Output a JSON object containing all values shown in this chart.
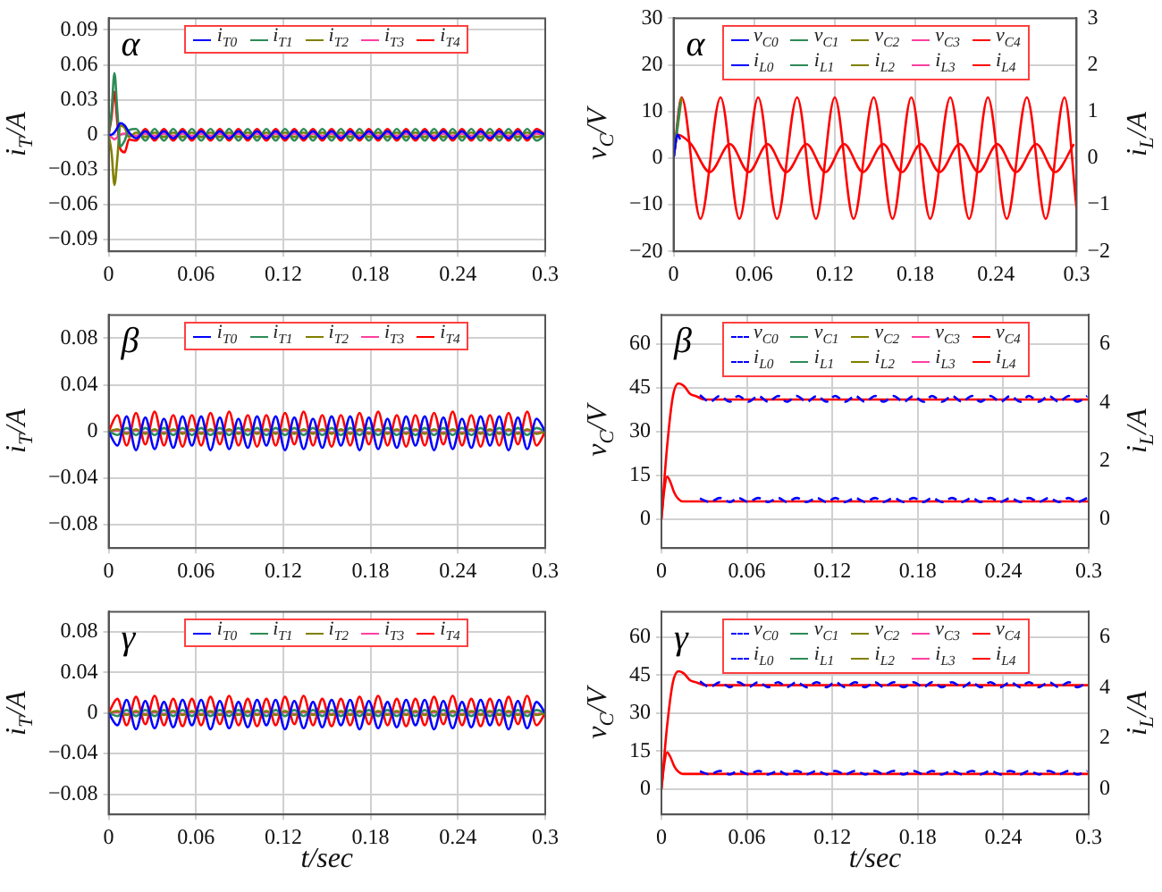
{
  "chart_data": [
    {
      "type": "line",
      "title": "α",
      "ylabel": "i$_{T}$/A",
      "x": [
        0,
        0.002,
        0.004,
        0.006,
        0.008,
        0.011,
        0.014,
        0.0188,
        0.0252,
        0.0316,
        0.038,
        0.0444,
        0.0508,
        0.0572,
        0.0636,
        0.07,
        0.0764,
        0.0828,
        0.0892,
        0.0956,
        0.102,
        0.1084,
        0.1148,
        0.1212,
        0.1276,
        0.134,
        0.1404,
        0.1468,
        0.1532,
        0.1596,
        0.166,
        0.1724,
        0.1788,
        0.1852,
        0.1916,
        0.198,
        0.2044,
        0.2108,
        0.2172,
        0.2236,
        0.23,
        0.2364,
        0.2428,
        0.2492,
        0.2556,
        0.262,
        0.2684,
        0.2748,
        0.2812,
        0.2876,
        0.294,
        0.3
      ],
      "series": [
        {
          "name": "i$_{T0}$",
          "color": "#0000ff",
          "values": [
            0,
            0,
            0.002,
            0.006,
            0.01,
            0.008,
            0.002,
            -0.003,
            0.003,
            -0.003,
            0.003,
            -0.003,
            0.003,
            -0.003,
            0.003,
            -0.003,
            0.003,
            -0.003,
            0.003,
            -0.003,
            0.003,
            -0.003,
            0.003,
            -0.003,
            0.003,
            -0.003,
            0.003,
            -0.003,
            0.003,
            -0.003,
            0.003,
            -0.003,
            0.003,
            -0.003,
            0.003,
            -0.003,
            0.003,
            -0.003,
            0.003,
            -0.003,
            0.003,
            -0.003,
            0.003,
            -0.003,
            0.003,
            -0.003,
            0.003,
            -0.003,
            0.003,
            -0.003,
            0.003,
            0
          ]
        },
        {
          "name": "i$_{T1}$",
          "color": "#2e8b57",
          "values": [
            0,
            0.02,
            0.053,
            0.02,
            -0.01,
            -0.005,
            0.004,
            0.005,
            -0.005,
            0.005,
            -0.005,
            0.005,
            -0.005,
            0.005,
            -0.005,
            0.005,
            -0.005,
            0.005,
            -0.005,
            0.005,
            -0.005,
            0.005,
            -0.005,
            0.005,
            -0.005,
            0.005,
            -0.005,
            0.005,
            -0.005,
            0.005,
            -0.005,
            0.005,
            -0.005,
            0.005,
            -0.005,
            0.005,
            -0.005,
            0.005,
            -0.005,
            0.005,
            -0.005,
            0.005,
            -0.005,
            0.005,
            -0.005,
            0.005,
            -0.005,
            0.005,
            -0.005,
            0.005,
            -0.005,
            0
          ]
        },
        {
          "name": "i$_{T2}$",
          "color": "#808000",
          "values": [
            0,
            -0.015,
            -0.043,
            -0.02,
            0.008,
            0.006,
            -0.002,
            0.002,
            -0.002,
            0.002,
            -0.002,
            0.002,
            -0.002,
            0.002,
            -0.002,
            0.002,
            -0.002,
            0.002,
            -0.002,
            0.002,
            -0.002,
            0.002,
            -0.002,
            0.002,
            -0.002,
            0.002,
            -0.002,
            0.002,
            -0.002,
            0.002,
            -0.002,
            0.002,
            -0.002,
            0.002,
            -0.002,
            0.002,
            -0.002,
            0.002,
            -0.002,
            0.002,
            -0.002,
            0.002,
            -0.002,
            0.002,
            -0.002,
            0.002,
            -0.002,
            0.002,
            -0.002,
            0.002,
            -0.002,
            0
          ]
        },
        {
          "name": "i$_{T3}$",
          "color": "#ff3fa0",
          "values": [
            0,
            -0.002,
            -0.004,
            -0.002,
            0,
            0.001,
            0,
            -0.001,
            0.001,
            -0.001,
            0.001,
            -0.001,
            0.001,
            -0.001,
            0.001,
            -0.001,
            0.001,
            -0.001,
            0.001,
            -0.001,
            0.001,
            -0.001,
            0.001,
            -0.001,
            0.001,
            -0.001,
            0.001,
            -0.001,
            0.001,
            -0.001,
            0.001,
            -0.001,
            0.001,
            -0.001,
            0.001,
            -0.001,
            0.001,
            -0.001,
            0.001,
            -0.001,
            0.001,
            -0.001,
            0.001,
            -0.001,
            0.001,
            -0.001,
            0.001,
            -0.001,
            0.001,
            -0.001,
            0.001,
            0
          ]
        },
        {
          "name": "i$_{T4}$",
          "color": "#ff0000",
          "values": [
            0,
            0.015,
            0.037,
            0.01,
            -0.012,
            -0.015,
            -0.004,
            -0.005,
            0.005,
            -0.005,
            0.005,
            -0.005,
            0.005,
            -0.005,
            0.005,
            -0.005,
            0.005,
            -0.005,
            0.005,
            -0.005,
            0.005,
            -0.005,
            0.005,
            -0.005,
            0.005,
            -0.005,
            0.005,
            -0.005,
            0.005,
            -0.005,
            0.005,
            -0.005,
            0.005,
            -0.005,
            0.005,
            -0.005,
            0.005,
            -0.005,
            0.005,
            -0.005,
            0.005,
            -0.005,
            0.005,
            -0.005,
            0.005,
            -0.005,
            0.005,
            -0.005,
            0.005,
            -0.005,
            0.005,
            0
          ]
        }
      ],
      "xlim": [
        0,
        0.3
      ],
      "xticks": [
        0,
        0.06,
        0.12,
        0.18,
        0.24,
        0.3
      ],
      "ylim": [
        -0.1,
        0.1
      ],
      "yticks": [
        -0.09,
        -0.06,
        -0.03,
        0,
        0.03,
        0.06,
        0.09
      ],
      "grid": true,
      "legend": "top"
    },
    {
      "type": "line",
      "title": "α",
      "ylabel": "v$_{C}$/V",
      "y2label": "i$_{L}$/A",
      "series": [
        {
          "name": "v$_{C0}$",
          "color": "#0000ff",
          "x": [
            0,
            0.003,
            0.005
          ],
          "values": [
            0,
            5,
            4
          ]
        },
        {
          "name": "v$_{C1}$",
          "color": "#2e8b57",
          "x": [
            0,
            0.005
          ],
          "values": [
            0,
            12
          ]
        },
        {
          "name": "v$_{C2}$",
          "color": "#808000",
          "x": [
            0,
            0.006
          ],
          "values": [
            0,
            13
          ]
        },
        {
          "name": "v$_{C3}$",
          "color": "#ff3fa0"
        },
        {
          "name": "v$_{C4}$",
          "color": "#ff0000",
          "x": [
            0,
            0.006,
            0.02,
            0.035,
            0.049,
            0.063,
            0.077,
            0.092,
            0.106,
            0.12,
            0.134,
            0.149,
            0.163,
            0.177,
            0.191,
            0.206,
            0.22,
            0.234,
            0.248,
            0.263,
            0.277,
            0.291,
            0.3
          ],
          "values": [
            0,
            13,
            -13,
            13,
            -13,
            13,
            -13,
            13,
            -13,
            13,
            -13,
            13,
            -13,
            13,
            -13,
            13,
            -13,
            13,
            -13,
            13,
            -13,
            13,
            -11
          ]
        },
        {
          "name": "i$_{L0}$",
          "color": "#0000ff",
          "axis": "y2"
        },
        {
          "name": "i$_{L1}$",
          "color": "#2e8b57",
          "axis": "y2"
        },
        {
          "name": "i$_{L2}$",
          "color": "#808000",
          "axis": "y2"
        },
        {
          "name": "i$_{L3}$",
          "color": "#ff3fa0",
          "axis": "y2"
        },
        {
          "name": "i$_{L4}$",
          "color": "#ff0000",
          "axis": "y2",
          "x": [
            0,
            0.003,
            0.013,
            0.027,
            0.042,
            0.056,
            0.07,
            0.084,
            0.099,
            0.113,
            0.127,
            0.141,
            0.156,
            0.17,
            0.184,
            0.198,
            0.213,
            0.227,
            0.241,
            0.255,
            0.27,
            0.284,
            0.298
          ],
          "values": [
            0,
            0.5,
            0.3,
            -0.3,
            0.3,
            -0.3,
            0.3,
            -0.3,
            0.3,
            -0.3,
            0.3,
            -0.3,
            0.3,
            -0.3,
            0.3,
            -0.3,
            0.3,
            -0.3,
            0.3,
            -0.3,
            0.3,
            -0.3,
            0.3
          ]
        }
      ],
      "xlim": [
        0,
        0.3
      ],
      "xticks": [
        0,
        0.06,
        0.12,
        0.18,
        0.24,
        0.3
      ],
      "ylim": [
        -20,
        30
      ],
      "yticks": [
        -20,
        -10,
        0,
        10,
        20,
        30
      ],
      "y2lim": [
        -2,
        3
      ],
      "y2ticks": [
        -2,
        -1,
        0,
        1,
        2,
        3
      ],
      "grid": true,
      "legend": "top"
    },
    {
      "type": "line",
      "title": "β",
      "ylabel": "i$_{T}$/A",
      "x": [
        0,
        0.006,
        0.0124,
        0.0188,
        0.0252,
        0.0316,
        0.038,
        0.0444,
        0.0508,
        0.0572,
        0.0636,
        0.07,
        0.0764,
        0.0828,
        0.0892,
        0.0956,
        0.102,
        0.1084,
        0.1148,
        0.1212,
        0.1276,
        0.134,
        0.1404,
        0.1468,
        0.1532,
        0.1596,
        0.166,
        0.1724,
        0.1788,
        0.1852,
        0.1916,
        0.198,
        0.2044,
        0.2108,
        0.2172,
        0.2236,
        0.23,
        0.2364,
        0.2428,
        0.2492,
        0.2556,
        0.262,
        0.2684,
        0.2748,
        0.2812,
        0.2876,
        0.294,
        0.3
      ],
      "series": [
        {
          "name": "i$_{T0}$",
          "color": "#0000ff",
          "values": [
            0,
            -0.012,
            0.013,
            -0.016,
            0.012,
            -0.015,
            0.011,
            -0.014,
            0.013,
            -0.012,
            0.013,
            -0.016,
            0.012,
            -0.015,
            0.011,
            -0.014,
            0.013,
            -0.012,
            0.013,
            -0.016,
            0.012,
            -0.015,
            0.011,
            -0.014,
            0.013,
            -0.012,
            0.013,
            -0.016,
            0.012,
            -0.015,
            0.011,
            -0.014,
            0.013,
            -0.012,
            0.013,
            -0.016,
            0.012,
            -0.015,
            0.011,
            -0.014,
            0.013,
            -0.012,
            0.013,
            -0.016,
            0.012,
            -0.015,
            0.011,
            0
          ]
        },
        {
          "name": "i$_{T1}$",
          "color": "#2e8b57",
          "values": [
            0,
            -0.003,
            0.003,
            -0.003,
            0.003,
            -0.003,
            0.003,
            -0.003,
            0.003,
            -0.003,
            0.003,
            -0.003,
            0.003,
            -0.003,
            0.003,
            -0.003,
            0.003,
            -0.003,
            0.003,
            -0.003,
            0.003,
            -0.003,
            0.003,
            -0.003,
            0.003,
            -0.003,
            0.003,
            -0.003,
            0.003,
            -0.003,
            0.003,
            -0.003,
            0.003,
            -0.003,
            0.003,
            -0.003,
            0.003,
            -0.003,
            0.003,
            -0.003,
            0.003,
            -0.003,
            0.003,
            -0.003,
            0.003,
            -0.003,
            0.003,
            0
          ]
        },
        {
          "name": "i$_{T2}$",
          "color": "#808000",
          "values": [
            0,
            0.002,
            -0.002,
            0.002,
            -0.002,
            0.002,
            -0.002,
            0.002,
            -0.002,
            0.002,
            -0.002,
            0.002,
            -0.002,
            0.002,
            -0.002,
            0.002,
            -0.002,
            0.002,
            -0.002,
            0.002,
            -0.002,
            0.002,
            -0.002,
            0.002,
            -0.002,
            0.002,
            -0.002,
            0.002,
            -0.002,
            0.002,
            -0.002,
            0.002,
            -0.002,
            0.002,
            -0.002,
            0.002,
            -0.002,
            0.002,
            -0.002,
            0.002,
            -0.002,
            0.002,
            -0.002,
            0.002,
            -0.002,
            0.002,
            -0.002,
            0
          ]
        },
        {
          "name": "i$_{T3}$",
          "color": "#ff3fa0",
          "values": [
            0,
            0.001,
            -0.001,
            0.001,
            -0.001,
            0.001,
            -0.001,
            0.001,
            -0.001,
            0.001,
            -0.001,
            0.001,
            -0.001,
            0.001,
            -0.001,
            0.001,
            -0.001,
            0.001,
            -0.001,
            0.001,
            -0.001,
            0.001,
            -0.001,
            0.001,
            -0.001,
            0.001,
            -0.001,
            0.001,
            -0.001,
            0.001,
            -0.001,
            0.001,
            -0.001,
            0.001,
            -0.001,
            0.001,
            -0.001,
            0.001,
            -0.001,
            0.001,
            -0.001,
            0.001,
            -0.001,
            0.001,
            -0.001,
            0.001,
            -0.001,
            0
          ]
        },
        {
          "name": "i$_{T4}$",
          "color": "#ff0000",
          "values": [
            0,
            0.014,
            -0.012,
            0.016,
            -0.011,
            0.017,
            -0.012,
            0.014,
            -0.013,
            0.014,
            -0.012,
            0.016,
            -0.011,
            0.017,
            -0.012,
            0.014,
            -0.013,
            0.014,
            -0.012,
            0.016,
            -0.011,
            0.017,
            -0.012,
            0.014,
            -0.013,
            0.014,
            -0.012,
            0.016,
            -0.011,
            0.017,
            -0.012,
            0.014,
            -0.013,
            0.014,
            -0.012,
            0.016,
            -0.011,
            0.017,
            -0.012,
            0.014,
            -0.013,
            0.014,
            -0.012,
            0.016,
            -0.011,
            0.017,
            -0.012,
            0
          ]
        }
      ],
      "xlim": [
        0,
        0.3
      ],
      "xticks": [
        0,
        0.06,
        0.12,
        0.18,
        0.24,
        0.3
      ],
      "ylim": [
        -0.1,
        0.1
      ],
      "yticks": [
        -0.08,
        -0.04,
        0,
        0.04,
        0.08
      ],
      "grid": true,
      "legend": "top"
    },
    {
      "type": "line",
      "title": "β",
      "ylabel": "v$_{C}$/V",
      "y2label": "i$_{L}$/A",
      "series": [
        {
          "name": "v$_{C0}$",
          "color": "#0000ff",
          "line_style": "dashed",
          "x": [
            0.027,
            0.034,
            0.041,
            0.048,
            0.054,
            0.061,
            0.068,
            0.075,
            0.082,
            0.088,
            0.095,
            0.102,
            0.109,
            0.116,
            0.122,
            0.129,
            0.136,
            0.143,
            0.15,
            0.156,
            0.163,
            0.17,
            0.177,
            0.184,
            0.19,
            0.197,
            0.204,
            0.211,
            0.218,
            0.224,
            0.231,
            0.238,
            0.245,
            0.252,
            0.258,
            0.265,
            0.272,
            0.279,
            0.286,
            0.292,
            0.299
          ],
          "values": [
            42.5,
            40.2,
            42.2,
            40.2,
            42.2,
            40.2,
            42.2,
            40.2,
            42.2,
            40.2,
            42.2,
            40.2,
            42.2,
            40.2,
            42.2,
            40.2,
            42.2,
            40.2,
            42.2,
            40.2,
            42.2,
            40.2,
            42.2,
            40.2,
            42.2,
            40.2,
            42.2,
            40.2,
            42.2,
            40.2,
            42.2,
            40.2,
            42.2,
            40.2,
            42.2,
            40.2,
            42.2,
            40.2,
            42.2,
            40.2,
            42.2
          ]
        },
        {
          "name": "v$_{C1}$",
          "color": "#2e8b57"
        },
        {
          "name": "v$_{C2}$",
          "color": "#808000"
        },
        {
          "name": "v$_{C3}$",
          "color": "#ff3fa0"
        },
        {
          "name": "v$_{C4}$",
          "color": "#ff0000",
          "x": [
            0,
            0.004,
            0.008,
            0.012,
            0.016,
            0.02,
            0.025,
            0.03,
            0.06,
            0.09,
            0.12,
            0.15,
            0.18,
            0.21,
            0.24,
            0.27,
            0.3
          ],
          "values": [
            0,
            25,
            42,
            46.5,
            45.5,
            43,
            42,
            41,
            41,
            41,
            41,
            41,
            41,
            41,
            41,
            41,
            41
          ]
        },
        {
          "name": "i$_{L0}$",
          "color": "#0000ff",
          "axis": "y2",
          "line_style": "dashed",
          "x": [
            0.027,
            0.034,
            0.041,
            0.048,
            0.054,
            0.061,
            0.068,
            0.075,
            0.082,
            0.088,
            0.095,
            0.102,
            0.109,
            0.116,
            0.122,
            0.129,
            0.136,
            0.143,
            0.15,
            0.156,
            0.163,
            0.17,
            0.177,
            0.184,
            0.19,
            0.197,
            0.204,
            0.211,
            0.218,
            0.224,
            0.231,
            0.238,
            0.245,
            0.252,
            0.258,
            0.265,
            0.272,
            0.279,
            0.286,
            0.292,
            0.299
          ],
          "values": [
            0.7,
            0.58,
            0.72,
            0.58,
            0.72,
            0.58,
            0.72,
            0.58,
            0.72,
            0.58,
            0.72,
            0.58,
            0.72,
            0.58,
            0.72,
            0.58,
            0.72,
            0.58,
            0.72,
            0.58,
            0.72,
            0.58,
            0.72,
            0.58,
            0.72,
            0.58,
            0.72,
            0.58,
            0.72,
            0.58,
            0.72,
            0.58,
            0.72,
            0.58,
            0.72,
            0.58,
            0.72,
            0.58,
            0.72,
            0.58,
            0.72
          ]
        },
        {
          "name": "i$_{L1}$",
          "color": "#2e8b57",
          "axis": "y2"
        },
        {
          "name": "i$_{L2}$",
          "color": "#808000",
          "axis": "y2"
        },
        {
          "name": "i$_{L3}$",
          "color": "#ff3fa0",
          "axis": "y2"
        },
        {
          "name": "i$_{L4}$",
          "color": "#ff0000",
          "axis": "y2",
          "x": [
            0,
            0.002,
            0.004,
            0.006,
            0.009,
            0.012,
            0.015,
            0.02,
            0.06,
            0.09,
            0.12,
            0.15,
            0.18,
            0.21,
            0.24,
            0.27,
            0.3
          ],
          "values": [
            0,
            1.0,
            1.45,
            1.3,
            0.9,
            0.68,
            0.6,
            0.6,
            0.6,
            0.6,
            0.6,
            0.6,
            0.6,
            0.6,
            0.6,
            0.6,
            0.6
          ]
        }
      ],
      "xlim": [
        0,
        0.3
      ],
      "xticks": [
        0,
        0.06,
        0.12,
        0.18,
        0.24,
        0.3
      ],
      "ylim": [
        -10,
        70
      ],
      "yticks": [
        0,
        15,
        30,
        45,
        60
      ],
      "y2lim": [
        -1,
        7
      ],
      "y2ticks": [
        0,
        2,
        4,
        6
      ],
      "grid": true,
      "legend": "top"
    },
    {
      "type": "line",
      "title": "γ",
      "xlabel": "t/sec",
      "ylabel": "i$_{T}$/A",
      "x": [
        0,
        0.006,
        0.0124,
        0.0188,
        0.0252,
        0.0316,
        0.038,
        0.0444,
        0.0508,
        0.0572,
        0.0636,
        0.07,
        0.0764,
        0.0828,
        0.0892,
        0.0956,
        0.102,
        0.1084,
        0.1148,
        0.1212,
        0.1276,
        0.134,
        0.1404,
        0.1468,
        0.1532,
        0.1596,
        0.166,
        0.1724,
        0.1788,
        0.1852,
        0.1916,
        0.198,
        0.2044,
        0.2108,
        0.2172,
        0.2236,
        0.23,
        0.2364,
        0.2428,
        0.2492,
        0.2556,
        0.262,
        0.2684,
        0.2748,
        0.2812,
        0.2876,
        0.294,
        0.3
      ],
      "series": [
        {
          "name": "i$_{T0}$",
          "color": "#0000ff",
          "values": [
            0,
            -0.012,
            0.013,
            -0.016,
            0.012,
            -0.015,
            0.011,
            -0.014,
            0.013,
            -0.012,
            0.013,
            -0.016,
            0.012,
            -0.015,
            0.011,
            -0.014,
            0.013,
            -0.012,
            0.013,
            -0.016,
            0.012,
            -0.015,
            0.011,
            -0.014,
            0.013,
            -0.012,
            0.013,
            -0.016,
            0.012,
            -0.015,
            0.011,
            -0.014,
            0.013,
            -0.012,
            0.013,
            -0.016,
            0.012,
            -0.015,
            0.011,
            -0.014,
            0.013,
            -0.012,
            0.013,
            -0.016,
            0.012,
            -0.015,
            0.011,
            0
          ]
        },
        {
          "name": "i$_{T1}$",
          "color": "#2e8b57",
          "values": [
            0,
            -0.003,
            0.003,
            -0.003,
            0.003,
            -0.003,
            0.003,
            -0.003,
            0.003,
            -0.003,
            0.003,
            -0.003,
            0.003,
            -0.003,
            0.003,
            -0.003,
            0.003,
            -0.003,
            0.003,
            -0.003,
            0.003,
            -0.003,
            0.003,
            -0.003,
            0.003,
            -0.003,
            0.003,
            -0.003,
            0.003,
            -0.003,
            0.003,
            -0.003,
            0.003,
            -0.003,
            0.003,
            -0.003,
            0.003,
            -0.003,
            0.003,
            -0.003,
            0.003,
            -0.003,
            0.003,
            -0.003,
            0.003,
            -0.003,
            0.003,
            0
          ]
        },
        {
          "name": "i$_{T2}$",
          "color": "#808000",
          "values": [
            0,
            0.002,
            -0.002,
            0.002,
            -0.002,
            0.002,
            -0.002,
            0.002,
            -0.002,
            0.002,
            -0.002,
            0.002,
            -0.002,
            0.002,
            -0.002,
            0.002,
            -0.002,
            0.002,
            -0.002,
            0.002,
            -0.002,
            0.002,
            -0.002,
            0.002,
            -0.002,
            0.002,
            -0.002,
            0.002,
            -0.002,
            0.002,
            -0.002,
            0.002,
            -0.002,
            0.002,
            -0.002,
            0.002,
            -0.002,
            0.002,
            -0.002,
            0.002,
            -0.002,
            0.002,
            -0.002,
            0.002,
            -0.002,
            0.002,
            -0.002,
            0
          ]
        },
        {
          "name": "i$_{T3}$",
          "color": "#ff3fa0",
          "values": [
            0,
            0.001,
            -0.001,
            0.001,
            -0.001,
            0.001,
            -0.001,
            0.001,
            -0.001,
            0.001,
            -0.001,
            0.001,
            -0.001,
            0.001,
            -0.001,
            0.001,
            -0.001,
            0.001,
            -0.001,
            0.001,
            -0.001,
            0.001,
            -0.001,
            0.001,
            -0.001,
            0.001,
            -0.001,
            0.001,
            -0.001,
            0.001,
            -0.001,
            0.001,
            -0.001,
            0.001,
            -0.001,
            0.001,
            -0.001,
            0.001,
            -0.001,
            0.001,
            -0.001,
            0.001,
            -0.001,
            0.001,
            -0.001,
            0.001,
            -0.001,
            0
          ]
        },
        {
          "name": "i$_{T4}$",
          "color": "#ff0000",
          "values": [
            0,
            0.014,
            -0.012,
            0.016,
            -0.011,
            0.017,
            -0.012,
            0.014,
            -0.013,
            0.014,
            -0.012,
            0.016,
            -0.011,
            0.017,
            -0.012,
            0.014,
            -0.013,
            0.014,
            -0.012,
            0.016,
            -0.011,
            0.017,
            -0.012,
            0.014,
            -0.013,
            0.014,
            -0.012,
            0.016,
            -0.011,
            0.017,
            -0.012,
            0.014,
            -0.013,
            0.014,
            -0.012,
            0.016,
            -0.011,
            0.017,
            -0.012,
            0.014,
            -0.013,
            0.014,
            -0.012,
            0.016,
            -0.011,
            0.017,
            -0.012,
            0
          ]
        }
      ],
      "xlim": [
        0,
        0.3
      ],
      "xticks": [
        0,
        0.06,
        0.12,
        0.18,
        0.24,
        0.3
      ],
      "ylim": [
        -0.1,
        0.1
      ],
      "yticks": [
        -0.08,
        -0.04,
        0,
        0.04,
        0.08
      ],
      "grid": true,
      "legend": "top"
    },
    {
      "type": "line",
      "title": "γ",
      "xlabel": "t/sec",
      "ylabel": "v$_{C}$/V",
      "y2label": "i$_{L}$/A",
      "series": [
        {
          "name": "v$_{C0}$",
          "color": "#0000ff",
          "line_style": "dashed",
          "x": [
            0.027,
            0.034,
            0.041,
            0.048,
            0.054,
            0.061,
            0.068,
            0.075,
            0.082,
            0.088,
            0.095,
            0.102,
            0.109,
            0.116,
            0.122,
            0.129,
            0.136,
            0.143,
            0.15,
            0.156,
            0.163,
            0.17,
            0.177,
            0.184,
            0.19,
            0.197,
            0.204,
            0.211,
            0.218,
            0.224,
            0.231,
            0.238,
            0.245,
            0.252,
            0.258,
            0.265,
            0.272,
            0.279,
            0.286,
            0.292,
            0.299
          ],
          "values": [
            42.5,
            40.2,
            42.2,
            40.2,
            42.2,
            40.2,
            42.2,
            40.2,
            42.2,
            40.2,
            42.2,
            40.2,
            42.2,
            40.2,
            42.2,
            40.2,
            42.2,
            40.2,
            42.2,
            40.2,
            42.2,
            40.2,
            42.2,
            40.2,
            42.2,
            40.2,
            42.2,
            40.2,
            42.2,
            40.2,
            42.2,
            40.2,
            42.2,
            40.2,
            42.2,
            40.2,
            42.2,
            40.2,
            42.2,
            40.2,
            42.2
          ]
        },
        {
          "name": "v$_{C1}$",
          "color": "#2e8b57"
        },
        {
          "name": "v$_{C2}$",
          "color": "#808000"
        },
        {
          "name": "v$_{C3}$",
          "color": "#ff3fa0"
        },
        {
          "name": "v$_{C4}$",
          "color": "#ff0000",
          "x": [
            0,
            0.004,
            0.008,
            0.012,
            0.016,
            0.02,
            0.025,
            0.03,
            0.06,
            0.09,
            0.12,
            0.15,
            0.18,
            0.21,
            0.24,
            0.27,
            0.3
          ],
          "values": [
            0,
            25,
            42,
            46.5,
            45.5,
            43,
            42,
            41,
            41,
            41,
            41,
            41,
            41,
            41,
            41,
            41,
            41
          ]
        },
        {
          "name": "i$_{L0}$",
          "color": "#0000ff",
          "axis": "y2",
          "line_style": "dashed",
          "x": [
            0.027,
            0.034,
            0.041,
            0.048,
            0.054,
            0.061,
            0.068,
            0.075,
            0.082,
            0.088,
            0.095,
            0.102,
            0.109,
            0.116,
            0.122,
            0.129,
            0.136,
            0.143,
            0.15,
            0.156,
            0.163,
            0.17,
            0.177,
            0.184,
            0.19,
            0.197,
            0.204,
            0.211,
            0.218,
            0.224,
            0.231,
            0.238,
            0.245,
            0.252,
            0.258,
            0.265,
            0.272,
            0.279,
            0.286,
            0.292,
            0.299
          ],
          "values": [
            0.7,
            0.58,
            0.72,
            0.58,
            0.72,
            0.58,
            0.72,
            0.58,
            0.72,
            0.58,
            0.72,
            0.58,
            0.72,
            0.58,
            0.72,
            0.58,
            0.72,
            0.58,
            0.72,
            0.58,
            0.72,
            0.58,
            0.72,
            0.58,
            0.72,
            0.58,
            0.72,
            0.58,
            0.72,
            0.58,
            0.72,
            0.58,
            0.72,
            0.58,
            0.72,
            0.58,
            0.72,
            0.58,
            0.72,
            0.58,
            0.72
          ]
        },
        {
          "name": "i$_{L1}$",
          "color": "#2e8b57",
          "axis": "y2"
        },
        {
          "name": "i$_{L2}$",
          "color": "#808000",
          "axis": "y2"
        },
        {
          "name": "i$_{L3}$",
          "color": "#ff3fa0",
          "axis": "y2"
        },
        {
          "name": "i$_{L4}$",
          "color": "#ff0000",
          "axis": "y2",
          "x": [
            0,
            0.002,
            0.004,
            0.006,
            0.009,
            0.012,
            0.015,
            0.02,
            0.06,
            0.09,
            0.12,
            0.15,
            0.18,
            0.21,
            0.24,
            0.27,
            0.3
          ],
          "values": [
            0,
            1.0,
            1.45,
            1.3,
            0.9,
            0.68,
            0.6,
            0.6,
            0.6,
            0.6,
            0.6,
            0.6,
            0.6,
            0.6,
            0.6,
            0.6,
            0.6
          ]
        }
      ],
      "xlim": [
        0,
        0.3
      ],
      "xticks": [
        0,
        0.06,
        0.12,
        0.18,
        0.24,
        0.3
      ],
      "ylim": [
        -10,
        70
      ],
      "yticks": [
        0,
        15,
        30,
        45,
        60
      ],
      "y2lim": [
        -1,
        7
      ],
      "y2ticks": [
        0,
        2,
        4,
        6
      ],
      "grid": true,
      "legend": "top"
    }
  ]
}
